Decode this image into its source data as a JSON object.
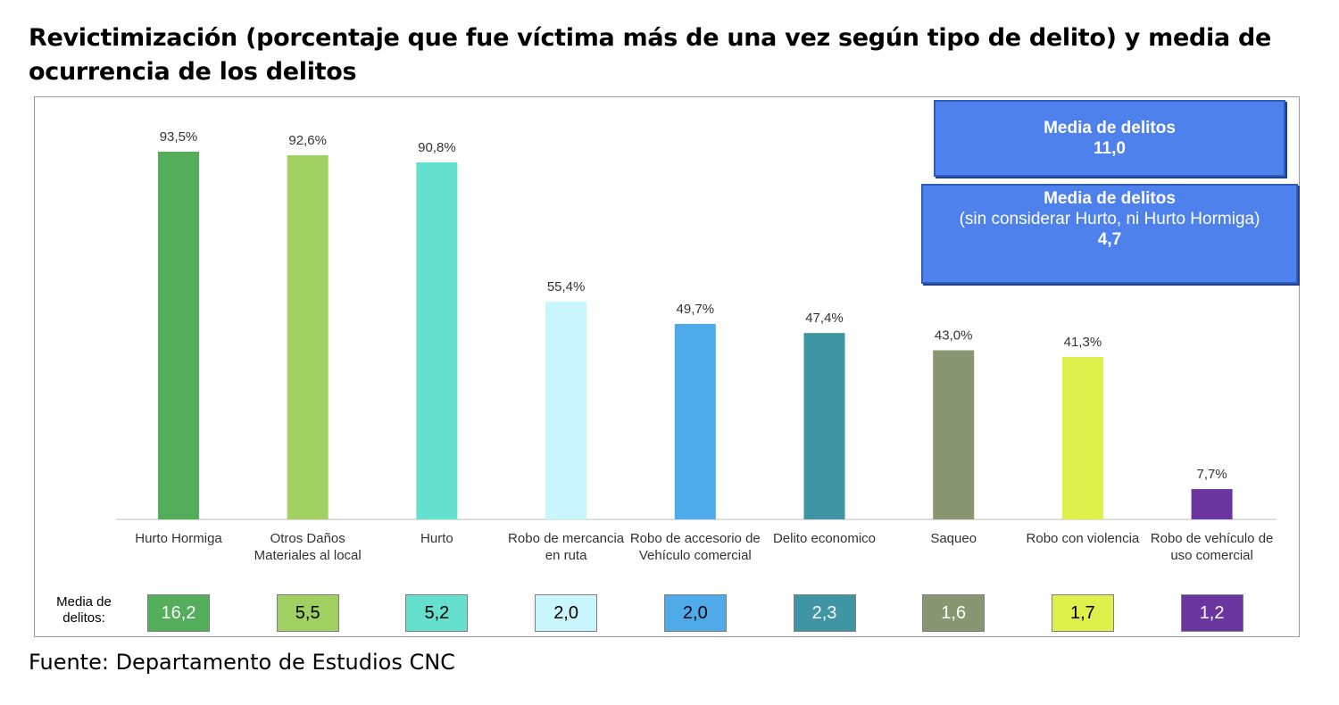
{
  "title": "Revictimización (porcentaje que fue víctima más de una vez según tipo de delito) y media de ocurrencia de los delitos",
  "source": "Fuente: Departamento de Estudios CNC",
  "media_row_label": "Media de delitos:",
  "box1": {
    "heading": "Media de delitos",
    "value": "11,0"
  },
  "box2": {
    "heading": "Media de delitos",
    "note": "(sin considerar Hurto, ni Hurto Hormiga)",
    "value": "4,7"
  },
  "colors": {
    "box": "#4e81ec"
  },
  "chart_data": {
    "type": "bar",
    "title": "Revictimización (porcentaje que fue víctima más de una vez según tipo de delito) y media de ocurrencia de los delitos",
    "ylim": [
      0,
      100
    ],
    "grid": false,
    "categories": [
      "Hurto Hormiga",
      "Otros Daños Materiales al local",
      "Hurto",
      "Robo de mercancia en ruta",
      "Robo de accesorio de Vehículo comercial",
      "Delito economico",
      "Saqueo",
      "Robo con violencia",
      "Robo de vehículo de uso comercial"
    ],
    "values": [
      93.5,
      92.6,
      90.8,
      55.4,
      49.7,
      47.4,
      43.0,
      41.3,
      7.7
    ],
    "value_labels": [
      "93,5%",
      "92,6%",
      "90,8%",
      "55,4%",
      "49,7%",
      "47,4%",
      "43,0%",
      "41,3%",
      "7,7%"
    ],
    "colors": [
      "#53ad5b",
      "#a0d061",
      "#66e0ce",
      "#c9f5fd",
      "#4eaae9",
      "#4095a5",
      "#889772",
      "#def04b",
      "#6b35a0"
    ],
    "media": [
      "16,2",
      "5,5",
      "5,2",
      "2,0",
      "2,0",
      "2,3",
      "1,6",
      "1,7",
      "1,2"
    ],
    "media_text_colors": [
      "#ffffff",
      "#000000",
      "#000000",
      "#000000",
      "#000000",
      "#ffffff",
      "#ffffff",
      "#000000",
      "#ffffff"
    ]
  }
}
